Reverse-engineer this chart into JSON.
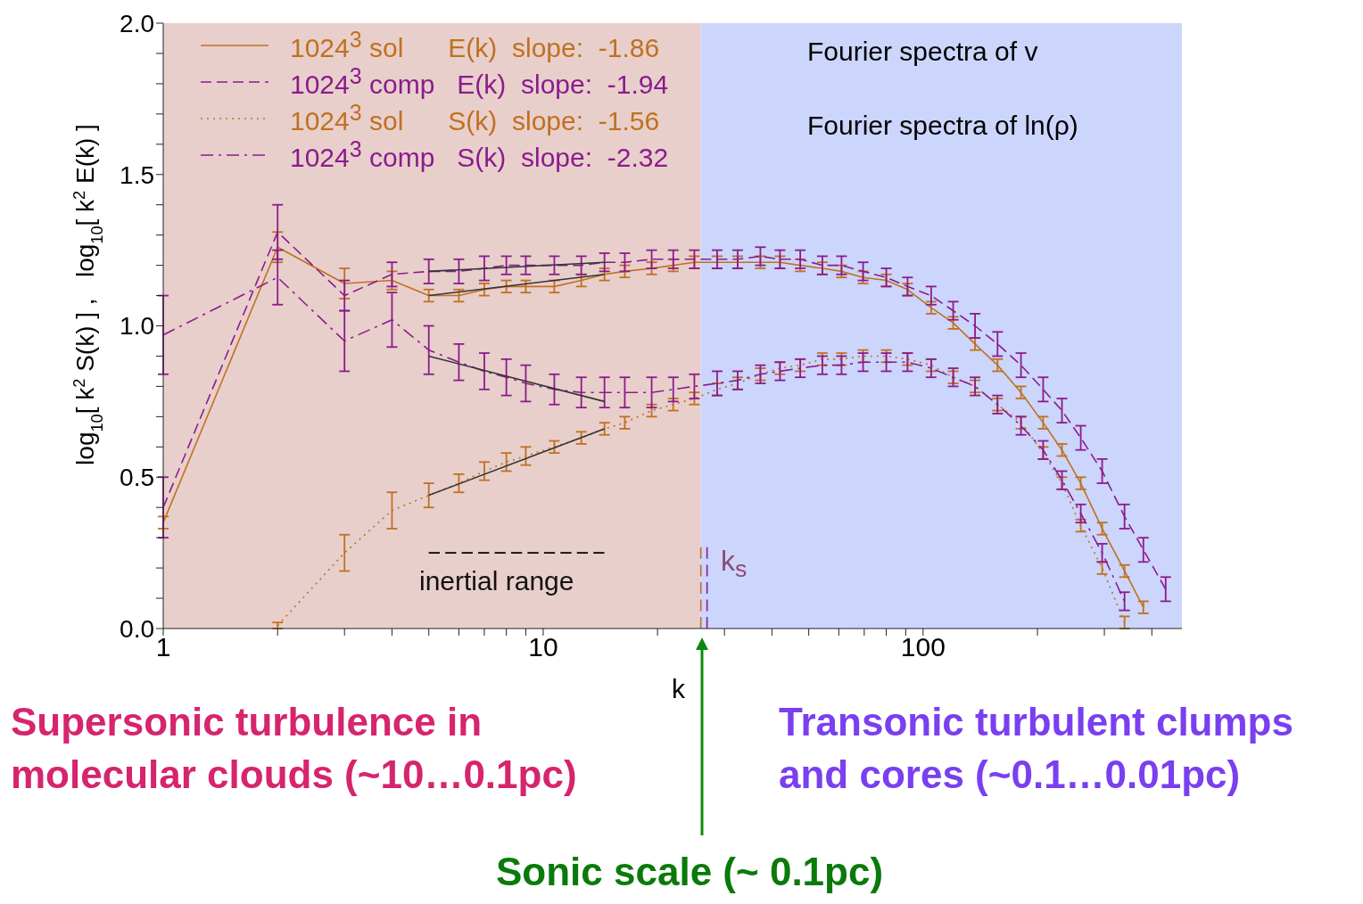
{
  "chart_data": {
    "type": "line",
    "xlabel": "k",
    "ylabel": "log$_{10}$[ k$^{2}$ S(k) ] ,   log$_{10}$[ k$^{2}$ E(k) ]",
    "log": "x",
    "xlim": [
      1,
      480
    ],
    "xticks": [
      1,
      {
        "value": 2,
        "label": null
      },
      {
        "value": 3,
        "label": null
      },
      {
        "value": 4,
        "label": null
      },
      {
        "value": 5,
        "label": null
      },
      {
        "value": 6,
        "label": null
      },
      {
        "value": 7,
        "label": null
      },
      {
        "value": 8,
        "label": null
      },
      {
        "value": 9,
        "label": null
      },
      10,
      {
        "value": 20,
        "label": null
      },
      {
        "value": 30,
        "label": null
      },
      {
        "value": 40,
        "label": null
      },
      {
        "value": 50,
        "label": null
      },
      {
        "value": 60,
        "label": null
      },
      {
        "value": 70,
        "label": null
      },
      {
        "value": 80,
        "label": null
      },
      {
        "value": 90,
        "label": null
      },
      100,
      {
        "value": 200,
        "label": null
      },
      {
        "value": 300,
        "label": null
      },
      {
        "value": 400,
        "label": null
      }
    ],
    "ylim": [
      0,
      2
    ],
    "yticks": [
      {
        "value": 0,
        "label": "0.0"
      },
      {
        "value": 0.1,
        "label": null
      },
      {
        "value": 0.2,
        "label": null
      },
      {
        "value": 0.3,
        "label": null
      },
      {
        "value": 0.4,
        "label": null
      },
      {
        "value": 0.5,
        "label": "0.5"
      },
      {
        "value": 0.6,
        "label": null
      },
      {
        "value": 0.7,
        "label": null
      },
      {
        "value": 0.8,
        "label": null
      },
      {
        "value": 0.9,
        "label": null
      },
      {
        "value": 1,
        "label": "1.0"
      },
      {
        "value": 1.1,
        "label": null
      },
      {
        "value": 1.2,
        "label": null
      },
      {
        "value": 1.3,
        "label": null
      },
      {
        "value": 1.4,
        "label": null
      },
      {
        "value": 1.5,
        "label": "1.5"
      },
      {
        "value": 1.6,
        "label": null
      },
      {
        "value": 1.7,
        "label": null
      },
      {
        "value": 1.8,
        "label": null
      },
      {
        "value": 1.9,
        "label": null
      },
      {
        "value": 2,
        "label": "2.0"
      }
    ],
    "legend": "top left",
    "x": [
      1,
      2,
      3,
      4,
      5,
      6,
      7,
      8,
      9,
      10.7,
      12.6,
      14.5,
      16.4,
      19.3,
      22,
      25,
      28.7,
      32.5,
      37.3,
      42,
      47.5,
      54.3,
      61,
      69.5,
      80,
      91,
      105,
      120,
      137,
      157,
      181,
      207,
      232,
      260,
      296,
      339,
      380,
      435
    ],
    "series": [
      {
        "name": "1024$^{3}$ sol      E(k)  slope:  -1.86",
        "color": "#c0711e",
        "line_style": "solid",
        "values": [
          0.35,
          1.26,
          1.14,
          1.15,
          1.1,
          1.1,
          1.12,
          1.13,
          1.13,
          1.13,
          1.15,
          1.17,
          1.18,
          1.19,
          1.2,
          1.21,
          1.21,
          1.21,
          1.21,
          1.21,
          1.2,
          1.19,
          1.18,
          1.16,
          1.15,
          1.12,
          1.06,
          1.01,
          0.94,
          0.87,
          0.78,
          0.68,
          0.59,
          0.48,
          0.33,
          0.19,
          0.07,
          null
        ],
        "errors": [
          0.02,
          0.05,
          0.05,
          0.03,
          0.02,
          0.02,
          0.02,
          0.02,
          0.02,
          0.02,
          0.02,
          0.02,
          0.02,
          0.02,
          0.02,
          0.02,
          0.02,
          0.02,
          0.02,
          0.02,
          0.02,
          0.02,
          0.02,
          0.02,
          0.02,
          0.02,
          0.02,
          0.02,
          0.02,
          0.02,
          0.02,
          0.02,
          0.02,
          0.02,
          0.02,
          0.02,
          0.02,
          null
        ]
      },
      {
        "name": "1024$^{3}$ comp   E(k)  slope:  -1.94",
        "color": "#8c1b8c",
        "line_style": "dashed",
        "values": [
          0.4,
          1.31,
          1.1,
          1.17,
          1.18,
          1.18,
          1.19,
          1.2,
          1.2,
          1.2,
          1.2,
          1.21,
          1.21,
          1.22,
          1.22,
          1.22,
          1.22,
          1.22,
          1.23,
          1.22,
          1.22,
          1.2,
          1.2,
          1.18,
          1.16,
          1.13,
          1.1,
          1.05,
          1.0,
          0.94,
          0.87,
          0.79,
          0.72,
          0.63,
          0.52,
          0.37,
          0.26,
          0.13
        ],
        "errors": [
          0.1,
          0.09,
          0.05,
          0.04,
          0.04,
          0.04,
          0.04,
          0.03,
          0.03,
          0.03,
          0.03,
          0.03,
          0.03,
          0.03,
          0.03,
          0.03,
          0.03,
          0.03,
          0.03,
          0.03,
          0.03,
          0.03,
          0.03,
          0.03,
          0.03,
          0.03,
          0.03,
          0.03,
          0.04,
          0.04,
          0.04,
          0.04,
          0.04,
          0.04,
          0.04,
          0.04,
          0.04,
          0.04
        ]
      },
      {
        "name": "1024$^{3}$ sol      S(k)  slope:  -1.56",
        "color": "#c0711e",
        "line_style": "dotted",
        "values": [
          null,
          0.01,
          0.25,
          0.39,
          0.44,
          0.48,
          0.52,
          0.55,
          0.57,
          0.6,
          0.63,
          0.66,
          0.68,
          0.72,
          0.74,
          0.76,
          0.79,
          0.81,
          0.84,
          0.86,
          0.87,
          0.89,
          0.89,
          0.9,
          0.9,
          0.89,
          0.87,
          0.83,
          0.8,
          0.74,
          0.68,
          0.58,
          0.48,
          0.34,
          0.2,
          0.02,
          null,
          null
        ],
        "errors": [
          null,
          0.01,
          0.06,
          0.06,
          0.04,
          0.03,
          0.03,
          0.03,
          0.03,
          0.02,
          0.02,
          0.02,
          0.02,
          0.02,
          0.02,
          0.02,
          0.02,
          0.02,
          0.02,
          0.02,
          0.02,
          0.02,
          0.02,
          0.02,
          0.02,
          0.02,
          0.02,
          0.02,
          0.02,
          0.02,
          0.02,
          0.02,
          0.02,
          0.02,
          0.02,
          0.02,
          null,
          null
        ]
      },
      {
        "name": "1024$^{3}$ comp   S(k)  slope:  -2.32",
        "color": "#8c1b8c",
        "line_style": "dashdot",
        "values": [
          0.97,
          1.16,
          0.95,
          1.02,
          0.92,
          0.88,
          0.85,
          0.83,
          0.81,
          0.79,
          0.78,
          0.78,
          0.78,
          0.78,
          0.79,
          0.8,
          0.81,
          0.82,
          0.84,
          0.85,
          0.86,
          0.87,
          0.87,
          0.88,
          0.88,
          0.88,
          0.86,
          0.83,
          0.8,
          0.74,
          0.67,
          0.59,
          0.49,
          0.38,
          0.25,
          0.09,
          null,
          null
        ],
        "errors": [
          0.13,
          0.09,
          0.1,
          0.09,
          0.08,
          0.06,
          0.06,
          0.06,
          0.06,
          0.05,
          0.05,
          0.05,
          0.05,
          0.05,
          0.04,
          0.04,
          0.04,
          0.03,
          0.03,
          0.03,
          0.03,
          0.03,
          0.03,
          0.03,
          0.03,
          0.03,
          0.03,
          0.03,
          0.03,
          0.03,
          0.03,
          0.03,
          0.03,
          0.03,
          0.03,
          0.03,
          null,
          null
        ]
      },
      {
        "type": "line",
        "color": "#333333",
        "line_style": "solid",
        "x": [
          5,
          14.5
        ],
        "values": [
          1.18,
          1.21
        ]
      },
      {
        "type": "line",
        "color": "#333333",
        "line_style": "solid",
        "x": [
          5,
          14.5
        ],
        "values": [
          1.1,
          1.17
        ]
      },
      {
        "type": "line",
        "color": "#333333",
        "line_style": "solid",
        "x": [
          5,
          14.5
        ],
        "values": [
          0.9,
          0.75
        ]
      },
      {
        "type": "line",
        "color": "#333333",
        "line_style": "solid",
        "x": [
          5,
          14.5
        ],
        "values": [
          0.44,
          0.66
        ]
      },
      {
        "type": "line",
        "color": "#000000",
        "line_style": "dashed",
        "x": [
          5,
          14.5
        ],
        "values": [
          0.25,
          0.25
        ]
      },
      {
        "type": "line",
        "color": "#c0711e",
        "line_style": "dashed",
        "x": [
          26,
          26
        ],
        "values": [
          0,
          0.27
        ]
      },
      {
        "type": "line",
        "color": "#8c1b8c",
        "line_style": "dashed",
        "x": [
          27,
          27
        ],
        "values": [
          0,
          0.27
        ]
      }
    ],
    "bands": [
      {
        "axis": "x",
        "from": 1,
        "to": 26,
        "color": "#e8cfcc"
      },
      {
        "axis": "x",
        "from": 26,
        "to": 480,
        "color": "#ccd5fb"
      }
    ],
    "annotations": [
      "Fourier spectra of v",
      "Fourier spectra of ln(ρ)",
      "inertial range",
      "k$_{s}$",
      "Supersonic turbulence in molecular clouds (~10…0.1pc)",
      "Transonic turbulent clumps and cores (~0.1…0.01pc)",
      "Sonic scale (~ 0.1pc)"
    ]
  }
}
